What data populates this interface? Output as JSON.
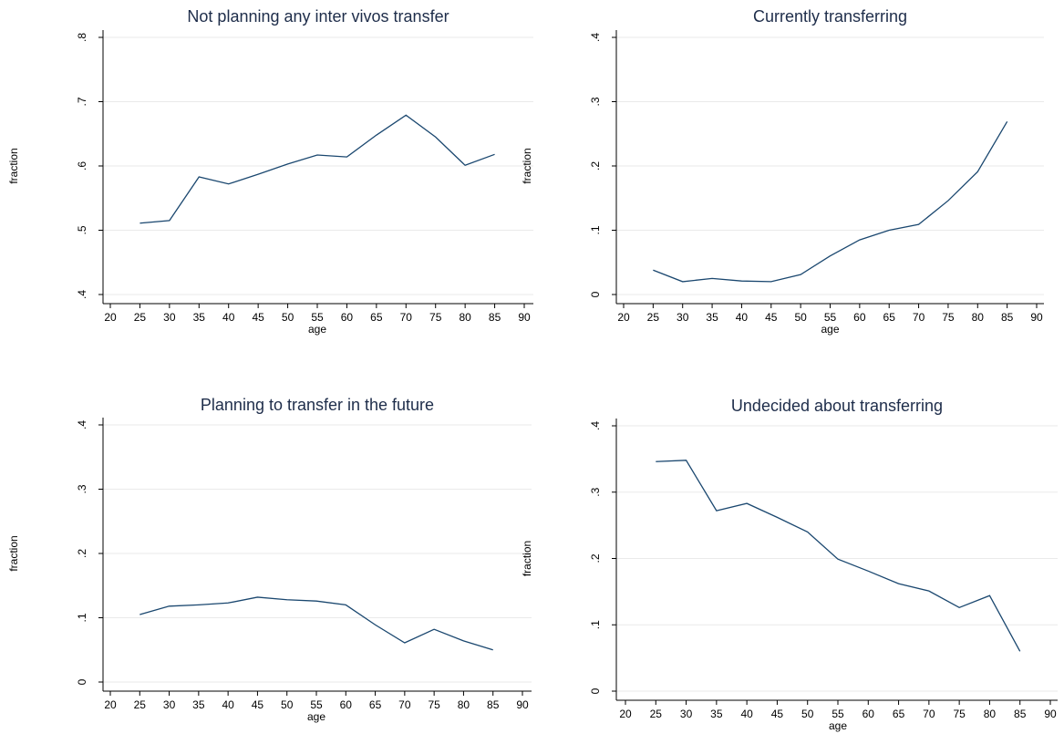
{
  "chart_data": [
    {
      "type": "line",
      "title": "Not planning any inter vivos transfer",
      "xlabel": "age",
      "ylabel": "fraction",
      "x": [
        25,
        30,
        35,
        40,
        45,
        50,
        55,
        60,
        65,
        70,
        75,
        80,
        85
      ],
      "values": [
        0.511,
        0.515,
        0.583,
        0.572,
        0.587,
        0.603,
        0.617,
        0.614,
        0.648,
        0.679,
        0.645,
        0.601,
        0.618
      ],
      "color": "#1a476f",
      "grid": true,
      "xlim": [
        20,
        90
      ],
      "xticks": [
        20,
        25,
        30,
        35,
        40,
        45,
        50,
        55,
        60,
        65,
        70,
        75,
        80,
        85,
        90
      ],
      "ylim": [
        0.4,
        0.8
      ],
      "yticks": [
        {
          "value": 0.4,
          "label": ".4"
        },
        {
          "value": 0.5,
          "label": ".5"
        },
        {
          "value": 0.6,
          "label": ".6"
        },
        {
          "value": 0.7,
          "label": ".7"
        },
        {
          "value": 0.8,
          "label": ".8"
        }
      ]
    },
    {
      "type": "line",
      "title": "Currently transferring",
      "xlabel": "age",
      "ylabel": "fraction",
      "x": [
        25,
        30,
        35,
        40,
        45,
        50,
        55,
        60,
        65,
        70,
        75,
        80,
        85
      ],
      "values": [
        0.038,
        0.02,
        0.025,
        0.021,
        0.02,
        0.031,
        0.06,
        0.085,
        0.1,
        0.109,
        0.146,
        0.191,
        0.269
      ],
      "color": "#1a476f",
      "grid": true,
      "xlim": [
        20,
        90
      ],
      "xticks": [
        20,
        25,
        30,
        35,
        40,
        45,
        50,
        55,
        60,
        65,
        70,
        75,
        80,
        85,
        90
      ],
      "ylim": [
        0,
        0.4
      ],
      "yticks": [
        0,
        {
          "value": 0.1,
          "label": ".1"
        },
        {
          "value": 0.2,
          "label": ".2"
        },
        {
          "value": 0.3,
          "label": ".3"
        },
        {
          "value": 0.4,
          "label": ".4"
        }
      ]
    },
    {
      "type": "line",
      "title": "Planning to transfer in the future",
      "xlabel": "age",
      "ylabel": "fraction",
      "x": [
        25,
        30,
        35,
        40,
        45,
        50,
        55,
        60,
        65,
        70,
        75,
        80,
        85
      ],
      "values": [
        0.105,
        0.118,
        0.12,
        0.123,
        0.132,
        0.128,
        0.126,
        0.12,
        0.089,
        0.061,
        0.082,
        0.064,
        0.05
      ],
      "color": "#1a476f",
      "grid": true,
      "xlim": [
        20,
        90
      ],
      "xticks": [
        20,
        25,
        30,
        35,
        40,
        45,
        50,
        55,
        60,
        65,
        70,
        75,
        80,
        85,
        90
      ],
      "ylim": [
        0,
        0.4
      ],
      "yticks": [
        0,
        {
          "value": 0.1,
          "label": ".1"
        },
        {
          "value": 0.2,
          "label": ".2"
        },
        {
          "value": 0.3,
          "label": ".3"
        },
        {
          "value": 0.4,
          "label": ".4"
        }
      ]
    },
    {
      "type": "line",
      "title": "Undecided about transferring",
      "xlabel": "age",
      "ylabel": "fraction",
      "x": [
        25,
        30,
        35,
        40,
        45,
        50,
        55,
        60,
        65,
        70,
        75,
        80,
        85
      ],
      "values": [
        0.346,
        0.348,
        0.272,
        0.283,
        0.262,
        0.24,
        0.199,
        0.181,
        0.162,
        0.151,
        0.126,
        0.144,
        0.06
      ],
      "color": "#1a476f",
      "grid": true,
      "xlim": [
        20,
        90
      ],
      "xticks": [
        20,
        25,
        30,
        35,
        40,
        45,
        50,
        55,
        60,
        65,
        70,
        75,
        80,
        85,
        90
      ],
      "ylim": [
        0,
        0.4
      ],
      "yticks": [
        0,
        {
          "value": 0.1,
          "label": ".1"
        },
        {
          "value": 0.2,
          "label": ".2"
        },
        {
          "value": 0.3,
          "label": ".3"
        },
        {
          "value": 0.4,
          "label": ".4"
        }
      ]
    }
  ]
}
